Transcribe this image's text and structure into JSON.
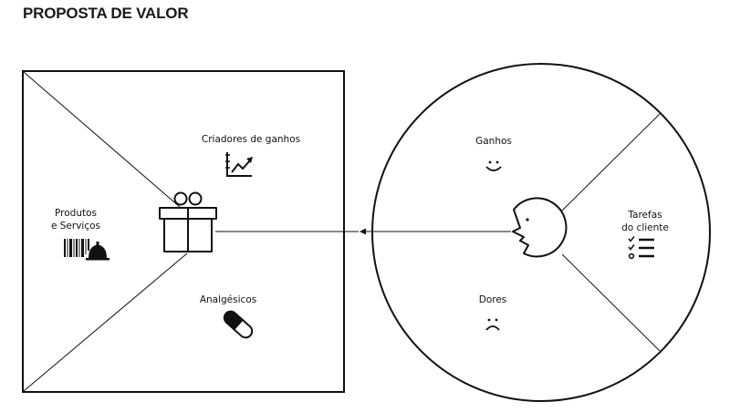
{
  "page": {
    "title": "PROPOSTA DE VALOR"
  },
  "value_map": {
    "sections": {
      "gain_creators": "Criadores de ganhos",
      "products_services_line1": "Produtos",
      "products_services_line2": "e Serviços",
      "pain_relievers": "Analgésicos"
    },
    "icons": {
      "gain_creators": "growth-chart-icon",
      "products_services": "barcode-and-service-bell-icon",
      "pain_relievers": "pill-capsule-icon",
      "center": "gift-box-icon"
    }
  },
  "customer_profile": {
    "sections": {
      "gains": "Ganhos",
      "jobs_line1": "Tarefas",
      "jobs_line2": "do cliente",
      "pains": "Dores"
    },
    "icons": {
      "gains": "smiley-face-icon",
      "jobs": "checklist-icon",
      "pains": "sad-face-icon",
      "center": "customer-face-icon"
    }
  },
  "connector": {
    "direction": "customer-to-value-map",
    "arrow": "arrow-left-icon"
  },
  "colors": {
    "stroke": "#111111",
    "background": "#ffffff"
  }
}
